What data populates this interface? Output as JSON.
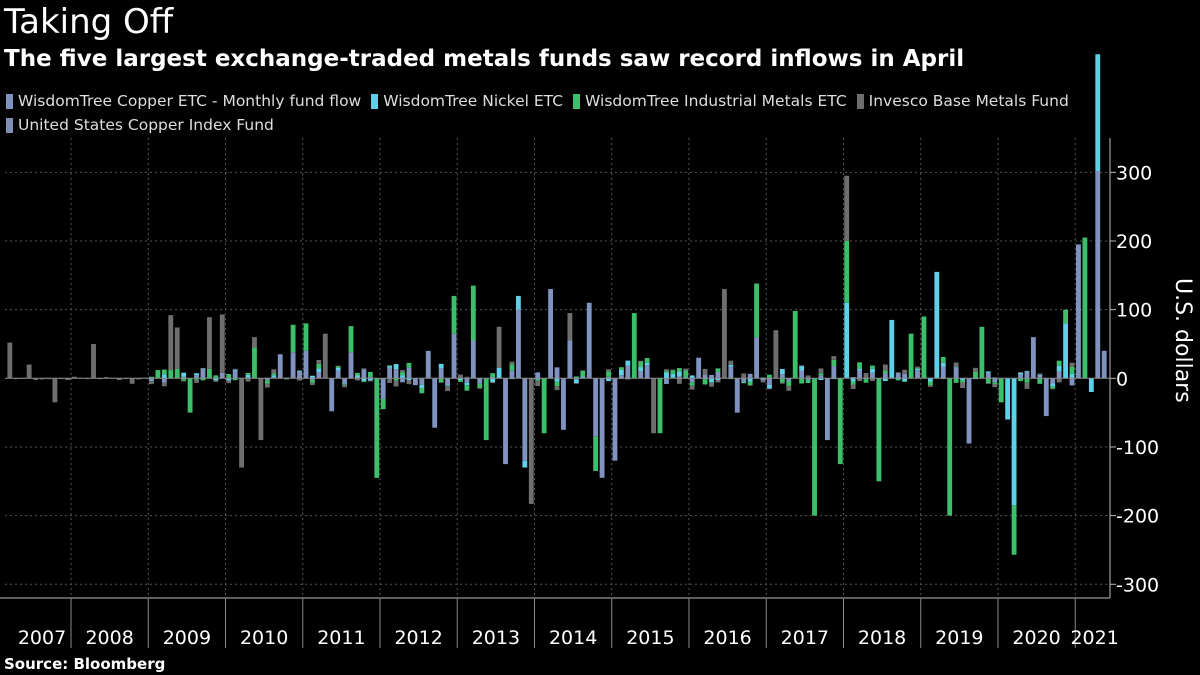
{
  "chart": {
    "title": "Taking Off",
    "subtitle": "The five largest exchange-traded metals funds saw record inflows in April",
    "source": "Source: Bloomberg"
  },
  "chart_data": {
    "type": "bar",
    "stacked": true,
    "title": "Taking Off",
    "subtitle": "The five largest exchange-traded metals funds saw record inflows in April",
    "ylabel": "U.S. dollars",
    "ylim": [
      -320,
      350
    ],
    "yticks": [
      300,
      200,
      100,
      0,
      -100,
      -200,
      -300
    ],
    "ytick_labels": [
      "300",
      "200",
      "100",
      "0",
      "-100",
      "-200",
      "-300"
    ],
    "years": [
      "2007",
      "2008",
      "2009",
      "2010",
      "2011",
      "2012",
      "2013",
      "2014",
      "2015",
      "2016",
      "2017",
      "2018",
      "2019",
      "2020",
      "2021"
    ],
    "grid": true,
    "legend_position": "top-left",
    "series": [
      {
        "name": "WisdomTree Copper ETC - Monthly fund flow",
        "color": "#8093c0"
      },
      {
        "name": "WisdomTree Nickel ETC",
        "color": "#5ed0e8"
      },
      {
        "name": "WisdomTree Industrial Metals ETC",
        "color": "#3bbf6a"
      },
      {
        "name": "Invesco Base Metals Fund",
        "color": "#6e6e6e"
      },
      {
        "name": "United States Copper Index Fund",
        "color": "#7f8fb8"
      }
    ],
    "monthly_net_flows_millions": [
      {
        "date": "2007-01",
        "invesco": -8
      },
      {
        "date": "2007-03",
        "invesco": 52
      },
      {
        "date": "2007-06",
        "invesco": 20
      },
      {
        "date": "2007-10",
        "invesco": -35
      },
      {
        "date": "2008-04",
        "invesco": 50
      },
      {
        "date": "2008-10",
        "invesco": -8
      },
      {
        "date": "2009-02",
        "industrial": 12
      },
      {
        "date": "2009-04",
        "invesco": 80,
        "industrial": 12
      },
      {
        "date": "2009-05",
        "invesco": 60,
        "industrial": 14
      },
      {
        "date": "2009-07",
        "industrial": -50
      },
      {
        "date": "2009-10",
        "invesco": 75,
        "industrial": 14
      },
      {
        "date": "2009-12",
        "invesco": 85,
        "copper": 8
      },
      {
        "date": "2010-03",
        "invesco": -130
      },
      {
        "date": "2010-05",
        "invesco": 15,
        "industrial": 45
      },
      {
        "date": "2010-06",
        "invesco": -90
      },
      {
        "date": "2010-09",
        "copper": 35
      },
      {
        "date": "2010-11",
        "industrial": 40,
        "copper": 38
      },
      {
        "date": "2011-01",
        "industrial": 40,
        "copper": 40
      },
      {
        "date": "2011-04",
        "invesco": 65
      },
      {
        "date": "2011-05",
        "copper": -48
      },
      {
        "date": "2011-08",
        "copper": 38,
        "industrial": 38
      },
      {
        "date": "2011-12",
        "industrial": -145
      },
      {
        "date": "2012-01",
        "copper": -30,
        "industrial": -15
      },
      {
        "date": "2012-06",
        "copper": -10
      },
      {
        "date": "2012-08",
        "copper": 40
      },
      {
        "date": "2012-09",
        "copper": -72
      },
      {
        "date": "2012-12",
        "copper": 65,
        "industrial": 55
      },
      {
        "date": "2013-03",
        "copper": 55,
        "industrial": 80
      },
      {
        "date": "2013-05",
        "industrial": -90
      },
      {
        "date": "2013-07",
        "nickel": 15,
        "invesco": 60
      },
      {
        "date": "2013-08",
        "copper": -125
      },
      {
        "date": "2013-10",
        "copper": 100,
        "nickel": 20
      },
      {
        "date": "2013-11",
        "copper": -120,
        "nickel": -10
      },
      {
        "date": "2013-12",
        "invesco": -183
      },
      {
        "date": "2014-02",
        "industrial": -80
      },
      {
        "date": "2014-03",
        "copper": 130
      },
      {
        "date": "2014-05",
        "copper": -75
      },
      {
        "date": "2014-06",
        "invesco": 40,
        "copper": 55
      },
      {
        "date": "2014-09",
        "copper": 110
      },
      {
        "date": "2014-10",
        "industrial": -50,
        "copper": -85
      },
      {
        "date": "2014-11",
        "copper": -145
      },
      {
        "date": "2015-01",
        "copper": -120
      },
      {
        "date": "2015-04",
        "industrial": 95
      },
      {
        "date": "2015-07",
        "invesco": -80
      },
      {
        "date": "2015-08",
        "industrial": -80
      },
      {
        "date": "2016-02",
        "copper": 30
      },
      {
        "date": "2016-06",
        "invesco": 130
      },
      {
        "date": "2016-08",
        "copper": -50
      },
      {
        "date": "2016-11",
        "industrial": 78,
        "copper": 60
      },
      {
        "date": "2017-02",
        "invesco": 70
      },
      {
        "date": "2017-05",
        "industrial": 98
      },
      {
        "date": "2017-08",
        "industrial": -200
      },
      {
        "date": "2017-10",
        "copper": -90
      },
      {
        "date": "2017-12",
        "industrial": -125
      },
      {
        "date": "2018-01",
        "industrial": 90,
        "nickel": 110,
        "invesco": 95
      },
      {
        "date": "2018-06",
        "industrial": -150
      },
      {
        "date": "2018-08",
        "nickel": 85
      },
      {
        "date": "2018-11",
        "industrial": 65
      },
      {
        "date": "2019-01",
        "industrial": 90
      },
      {
        "date": "2019-03",
        "nickel": 155
      },
      {
        "date": "2019-05",
        "industrial": -200
      },
      {
        "date": "2019-08",
        "copper": -95
      },
      {
        "date": "2019-10",
        "industrial": 75
      },
      {
        "date": "2020-01",
        "industrial": -35
      },
      {
        "date": "2020-02",
        "nickel": -60
      },
      {
        "date": "2020-03",
        "nickel": -185,
        "industrial": -72
      },
      {
        "date": "2020-06",
        "copper": 60
      },
      {
        "date": "2020-08",
        "copper": -55
      },
      {
        "date": "2020-11",
        "nickel": 80,
        "industrial": 20
      },
      {
        "date": "2021-01",
        "copper": 195
      },
      {
        "date": "2021-02",
        "industrial": 205
      },
      {
        "date": "2021-03",
        "nickel": -20
      },
      {
        "date": "2021-04",
        "copper": 302,
        "nickel": 170
      },
      {
        "date": "2021-05",
        "copper": 40
      }
    ]
  }
}
